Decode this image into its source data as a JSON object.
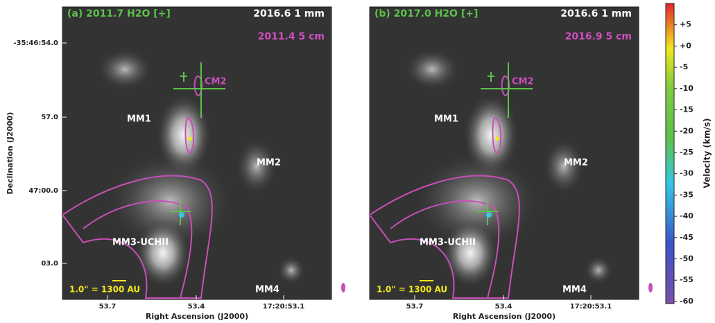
{
  "figure": {
    "ylabel": "Declination (J2000)",
    "yticks": [
      "-35:46:54.0",
      "57.0",
      "47:00.0",
      "03.0"
    ],
    "panels": [
      {
        "title": "(a) 2011.7 H2O [+]",
        "epoch_1mm": "2016.6 1 mm",
        "epoch_5cm": "2011.4 5 cm",
        "sources": [
          "CM2",
          "MM1",
          "MM2",
          "MM3-UCHII",
          "MM4"
        ],
        "scale_bar": "1.0\" = 1300 AU",
        "xlabel": "Right Ascension (J2000)",
        "xticks": [
          "53.7",
          "53.4",
          "17:20:53.1"
        ]
      },
      {
        "title": "(b) 2017.0 H2O [+]",
        "epoch_1mm": "2016.6 1 mm",
        "epoch_5cm": "2016.9 5 cm",
        "sources": [
          "CM2",
          "MM1",
          "MM2",
          "MM3-UCHII",
          "MM4"
        ],
        "scale_bar": "1.0\" = 1300 AU",
        "xlabel": "Right Ascension (J2000)",
        "xticks": [
          "53.7",
          "53.4",
          "17:20:53.1"
        ]
      }
    ],
    "colorbar": {
      "label": "Velocity (km/s)",
      "clim": [
        -60.5,
        10
      ],
      "ticks": [
        {
          "value": 5,
          "label": "+5"
        },
        {
          "value": 0,
          "label": "+0"
        },
        -5,
        -10,
        -15,
        -20,
        -25,
        -30,
        -35,
        -40,
        -45,
        -50,
        -55,
        -60
      ]
    }
  }
}
